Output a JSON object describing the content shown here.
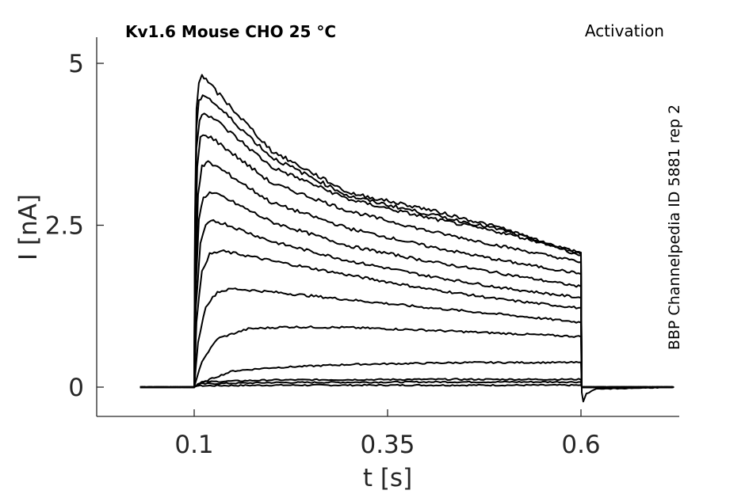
{
  "chart_data": {
    "type": "line",
    "title": "Kv1.6  Mouse  CHO  25 °C",
    "protocol": "Activation",
    "side_note": "BBP Channelpedia ID 5881 rep 2",
    "xlabel": "t [s]",
    "ylabel": "I [nA]",
    "xlim": [
      -0.0,
      0.75
    ],
    "ylim": [
      -0.45,
      5.4
    ],
    "xticks": [
      0.1,
      0.35,
      0.6
    ],
    "xtick_labels": [
      "0.1",
      "0.35",
      "0.6"
    ],
    "yticks": [
      0,
      2.5,
      5
    ],
    "ytick_labels": [
      "0",
      "2.5",
      "5"
    ],
    "grid": false,
    "pulse": {
      "onset": 0.1,
      "offset": 0.6,
      "record_start": 0.028,
      "record_end": 0.722
    },
    "series": [
      {
        "points": [
          [
            0.03,
            0
          ],
          [
            0.1,
            0
          ],
          [
            0.102,
            0.02
          ],
          [
            0.2,
            0.03
          ],
          [
            0.4,
            0.03
          ],
          [
            0.6,
            0.03
          ],
          [
            0.601,
            0
          ],
          [
            0.72,
            0
          ]
        ]
      },
      {
        "points": [
          [
            0.03,
            0
          ],
          [
            0.1,
            0
          ],
          [
            0.105,
            0.05
          ],
          [
            0.2,
            0.07
          ],
          [
            0.4,
            0.08
          ],
          [
            0.6,
            0.08
          ],
          [
            0.601,
            0
          ],
          [
            0.72,
            0
          ]
        ]
      },
      {
        "points": [
          [
            0.03,
            0
          ],
          [
            0.1,
            0
          ],
          [
            0.11,
            0.08
          ],
          [
            0.2,
            0.11
          ],
          [
            0.4,
            0.12
          ],
          [
            0.6,
            0.12
          ],
          [
            0.601,
            0
          ],
          [
            0.72,
            0
          ]
        ]
      },
      {
        "points": [
          [
            0.03,
            0
          ],
          [
            0.1,
            0
          ],
          [
            0.12,
            0.12
          ],
          [
            0.15,
            0.25
          ],
          [
            0.2,
            0.3
          ],
          [
            0.3,
            0.35
          ],
          [
            0.45,
            0.38
          ],
          [
            0.6,
            0.38
          ],
          [
            0.601,
            0
          ],
          [
            0.72,
            0
          ]
        ]
      },
      {
        "points": [
          [
            0.03,
            0
          ],
          [
            0.1,
            0
          ],
          [
            0.11,
            0.4
          ],
          [
            0.13,
            0.75
          ],
          [
            0.17,
            0.9
          ],
          [
            0.22,
            0.93
          ],
          [
            0.3,
            0.92
          ],
          [
            0.4,
            0.88
          ],
          [
            0.5,
            0.83
          ],
          [
            0.6,
            0.78
          ],
          [
            0.601,
            0
          ],
          [
            0.72,
            0
          ]
        ]
      },
      {
        "points": [
          [
            0.03,
            0
          ],
          [
            0.1,
            0
          ],
          [
            0.105,
            0.7
          ],
          [
            0.115,
            1.25
          ],
          [
            0.13,
            1.47
          ],
          [
            0.15,
            1.52
          ],
          [
            0.2,
            1.47
          ],
          [
            0.3,
            1.35
          ],
          [
            0.4,
            1.23
          ],
          [
            0.5,
            1.12
          ],
          [
            0.6,
            1.0
          ],
          [
            0.601,
            0
          ],
          [
            0.72,
            0
          ]
        ]
      },
      {
        "points": [
          [
            0.03,
            0
          ],
          [
            0.1,
            0
          ],
          [
            0.103,
            1.0
          ],
          [
            0.11,
            1.8
          ],
          [
            0.12,
            2.05
          ],
          [
            0.135,
            2.1
          ],
          [
            0.16,
            2.05
          ],
          [
            0.2,
            1.95
          ],
          [
            0.3,
            1.73
          ],
          [
            0.4,
            1.52
          ],
          [
            0.5,
            1.35
          ],
          [
            0.6,
            1.22
          ],
          [
            0.601,
            0
          ],
          [
            0.72,
            0
          ]
        ]
      },
      {
        "points": [
          [
            0.03,
            0
          ],
          [
            0.1,
            0
          ],
          [
            0.102,
            1.2
          ],
          [
            0.108,
            2.2
          ],
          [
            0.115,
            2.5
          ],
          [
            0.125,
            2.57
          ],
          [
            0.14,
            2.52
          ],
          [
            0.2,
            2.25
          ],
          [
            0.3,
            1.95
          ],
          [
            0.4,
            1.72
          ],
          [
            0.5,
            1.53
          ],
          [
            0.6,
            1.38
          ],
          [
            0.601,
            0
          ],
          [
            0.72,
            0
          ]
        ]
      },
      {
        "points": [
          [
            0.03,
            0
          ],
          [
            0.1,
            0
          ],
          [
            0.102,
            1.5
          ],
          [
            0.106,
            2.6
          ],
          [
            0.112,
            2.93
          ],
          [
            0.12,
            3.0
          ],
          [
            0.135,
            2.95
          ],
          [
            0.2,
            2.55
          ],
          [
            0.3,
            2.18
          ],
          [
            0.4,
            1.95
          ],
          [
            0.5,
            1.75
          ],
          [
            0.6,
            1.55
          ],
          [
            0.601,
            0
          ],
          [
            0.72,
            0
          ]
        ]
      },
      {
        "points": [
          [
            0.03,
            0
          ],
          [
            0.1,
            0
          ],
          [
            0.102,
            1.8
          ],
          [
            0.105,
            3.0
          ],
          [
            0.11,
            3.4
          ],
          [
            0.118,
            3.47
          ],
          [
            0.13,
            3.4
          ],
          [
            0.2,
            2.85
          ],
          [
            0.3,
            2.45
          ],
          [
            0.4,
            2.18
          ],
          [
            0.5,
            1.95
          ],
          [
            0.6,
            1.75
          ],
          [
            0.601,
            0
          ],
          [
            0.72,
            0
          ]
        ]
      },
      {
        "points": [
          [
            0.03,
            0
          ],
          [
            0.1,
            0
          ],
          [
            0.101,
            2.0
          ],
          [
            0.104,
            3.4
          ],
          [
            0.108,
            3.85
          ],
          [
            0.115,
            3.9
          ],
          [
            0.125,
            3.83
          ],
          [
            0.2,
            3.15
          ],
          [
            0.3,
            2.72
          ],
          [
            0.4,
            2.42
          ],
          [
            0.5,
            2.17
          ],
          [
            0.6,
            1.93
          ],
          [
            0.601,
            0
          ],
          [
            0.72,
            0
          ]
        ]
      },
      {
        "points": [
          [
            0.03,
            0
          ],
          [
            0.1,
            0
          ],
          [
            0.101,
            2.2
          ],
          [
            0.103,
            3.7
          ],
          [
            0.107,
            4.15
          ],
          [
            0.113,
            4.25
          ],
          [
            0.125,
            4.15
          ],
          [
            0.2,
            3.4
          ],
          [
            0.3,
            2.9
          ],
          [
            0.4,
            2.62
          ],
          [
            0.5,
            2.38
          ],
          [
            0.6,
            2.08
          ],
          [
            0.601,
            0
          ],
          [
            0.72,
            0
          ]
        ]
      },
      {
        "points": [
          [
            0.03,
            0
          ],
          [
            0.1,
            0
          ],
          [
            0.101,
            2.4
          ],
          [
            0.103,
            4.0
          ],
          [
            0.106,
            4.4
          ],
          [
            0.111,
            4.53
          ],
          [
            0.12,
            4.45
          ],
          [
            0.2,
            3.55
          ],
          [
            0.3,
            2.95
          ],
          [
            0.4,
            2.68
          ],
          [
            0.5,
            2.42
          ],
          [
            0.6,
            2.05
          ],
          [
            0.601,
            0
          ],
          [
            0.72,
            0
          ]
        ]
      },
      {
        "points": [
          [
            0.03,
            0
          ],
          [
            0.1,
            0
          ],
          [
            0.101,
            2.6
          ],
          [
            0.103,
            4.3
          ],
          [
            0.106,
            4.72
          ],
          [
            0.11,
            4.82
          ],
          [
            0.118,
            4.7
          ],
          [
            0.2,
            3.65
          ],
          [
            0.3,
            3.0
          ],
          [
            0.4,
            2.75
          ],
          [
            0.5,
            2.45
          ],
          [
            0.6,
            2.03
          ],
          [
            0.601,
            -0.08
          ],
          [
            0.603,
            -0.22
          ],
          [
            0.607,
            -0.1
          ],
          [
            0.62,
            -0.03
          ],
          [
            0.72,
            0
          ]
        ]
      }
    ]
  }
}
